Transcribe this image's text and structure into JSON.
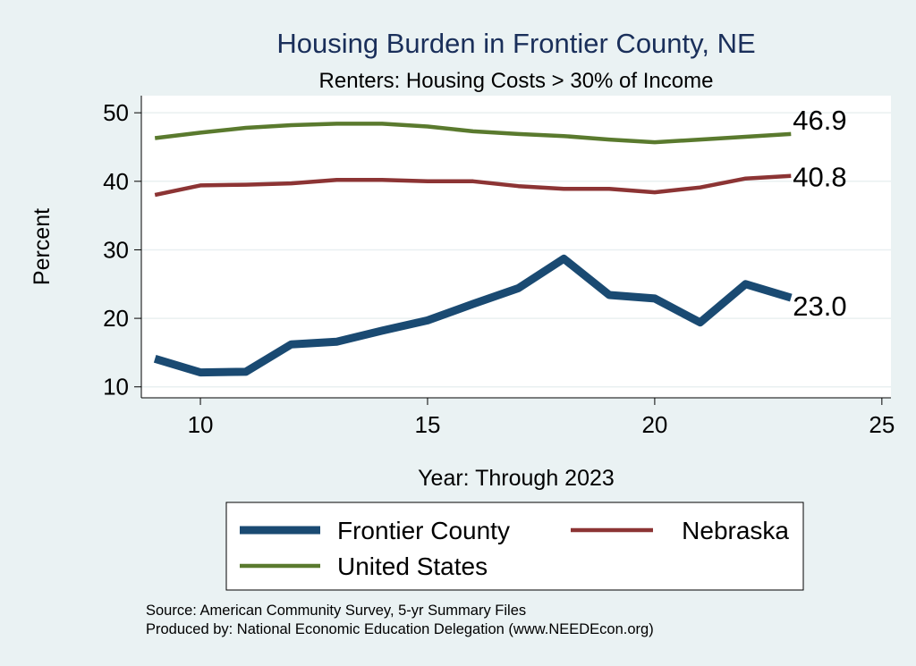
{
  "chart_data": {
    "type": "line",
    "title": "Housing Burden in Frontier County, NE",
    "subtitle": "Renters: Housing Costs > 30% of Income",
    "xlabel": "Year: Through 2023",
    "ylabel": "Percent",
    "xlim": [
      8.7,
      25.2
    ],
    "ylim": [
      8.4,
      52.5
    ],
    "xticks": [
      10,
      15,
      20,
      25
    ],
    "yticks": [
      10,
      20,
      30,
      40,
      50
    ],
    "grid": true,
    "legend_position": "bottom",
    "series": [
      {
        "name": "Frontier County",
        "color": "#1a4a72",
        "x": [
          9,
          10,
          11,
          12,
          13,
          14,
          15,
          16,
          17,
          18,
          19,
          20,
          21,
          22,
          23
        ],
        "values": [
          14.1,
          12.1,
          12.2,
          16.2,
          16.6,
          18.2,
          19.7,
          22.1,
          24.4,
          28.7,
          23.4,
          22.9,
          19.4,
          25.0,
          23.0
        ],
        "end_label": "23.0"
      },
      {
        "name": "Nebraska",
        "color": "#8c3434",
        "x": [
          9,
          10,
          11,
          12,
          13,
          14,
          15,
          16,
          17,
          18,
          19,
          20,
          21,
          22,
          23
        ],
        "values": [
          38.0,
          39.4,
          39.5,
          39.7,
          40.2,
          40.2,
          40.0,
          40.0,
          39.3,
          38.9,
          38.9,
          38.4,
          39.1,
          40.4,
          40.8
        ],
        "end_label": "40.8"
      },
      {
        "name": "United States",
        "color": "#5a7a2e",
        "x": [
          9,
          10,
          11,
          12,
          13,
          14,
          15,
          16,
          17,
          18,
          19,
          20,
          21,
          22,
          23
        ],
        "values": [
          46.3,
          47.1,
          47.8,
          48.2,
          48.4,
          48.4,
          48.0,
          47.3,
          46.9,
          46.6,
          46.1,
          45.7,
          46.1,
          46.5,
          46.9
        ],
        "end_label": "46.9"
      }
    ]
  },
  "source_line1": "Source: American Community Survey, 5-yr Summary Files",
  "source_line2": "Produced by: National Economic Education Delegation (www.NEEDEcon.org)"
}
